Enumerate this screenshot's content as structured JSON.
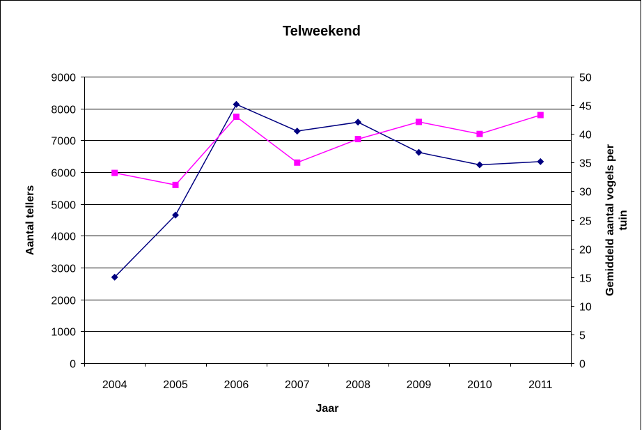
{
  "chart_data": {
    "type": "line",
    "title": "Telweekend",
    "xlabel": "Jaar",
    "ylabel_left": "Aantal tellers",
    "ylabel_right_line1": "Gemiddeld aantal vogels per",
    "ylabel_right_line2": "tuin",
    "categories": [
      "2004",
      "2005",
      "2006",
      "2007",
      "2008",
      "2009",
      "2010",
      "2011"
    ],
    "y_left": {
      "min": 0,
      "max": 9000,
      "step": 1000,
      "ticks": [
        "0",
        "1000",
        "2000",
        "3000",
        "4000",
        "5000",
        "6000",
        "7000",
        "8000",
        "9000"
      ]
    },
    "y_right": {
      "min": 0,
      "max": 50,
      "step": 5,
      "ticks": [
        "0",
        "5",
        "10",
        "15",
        "20",
        "25",
        "30",
        "35",
        "40",
        "45",
        "50"
      ]
    },
    "grid": "horizontal",
    "series": [
      {
        "axis": "left",
        "color": "#000080",
        "marker": "diamond",
        "values": [
          2700,
          4650,
          8130,
          7290,
          7570,
          6620,
          6230,
          6330
        ]
      },
      {
        "axis": "right",
        "color": "#FF00FF",
        "marker": "square",
        "values": [
          33.2,
          31.1,
          43.0,
          35.0,
          39.1,
          42.1,
          40.0,
          43.3
        ]
      }
    ]
  }
}
